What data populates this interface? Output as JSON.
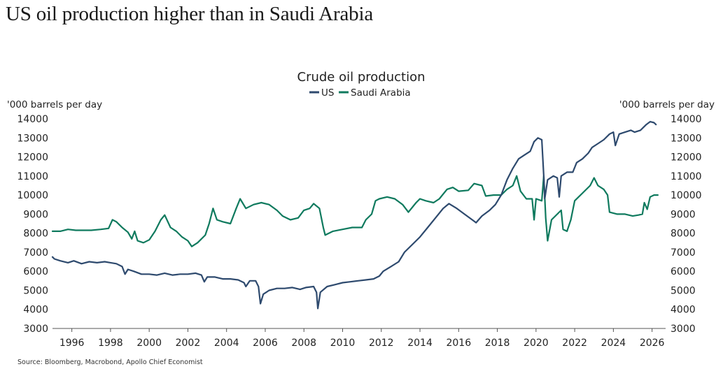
{
  "page": {
    "title": "US oil production higher than in Saudi Arabia",
    "source": "Source: Bloomberg, Macrobond, Apollo Chief Economist"
  },
  "chart_data": {
    "type": "line",
    "title": "Crude oil production",
    "ylabel_left": "'000 barrels per day",
    "ylabel_right": "'000 barrels per day",
    "xlabel": "",
    "ylim": [
      3000,
      14000
    ],
    "xlim": [
      1995.0,
      2026.7
    ],
    "yticks": [
      3000,
      4000,
      5000,
      6000,
      7000,
      8000,
      9000,
      10000,
      11000,
      12000,
      13000,
      14000
    ],
    "xticks": [
      1996,
      1998,
      2000,
      2002,
      2004,
      2006,
      2008,
      2010,
      2012,
      2014,
      2016,
      2018,
      2020,
      2022,
      2024,
      2026
    ],
    "legend_position": "top-center",
    "grid": false,
    "colors": {
      "US": "#2e4a6e",
      "Saudi Arabia": "#0f7a5e"
    },
    "series": [
      {
        "name": "US",
        "points": [
          [
            1995.0,
            6750
          ],
          [
            1995.1,
            6650
          ],
          [
            1995.4,
            6550
          ],
          [
            1995.8,
            6450
          ],
          [
            1996.1,
            6550
          ],
          [
            1996.5,
            6400
          ],
          [
            1996.9,
            6500
          ],
          [
            1997.3,
            6450
          ],
          [
            1997.7,
            6500
          ],
          [
            1998.0,
            6450
          ],
          [
            1998.3,
            6400
          ],
          [
            1998.6,
            6250
          ],
          [
            1998.75,
            5850
          ],
          [
            1998.9,
            6100
          ],
          [
            1999.2,
            6000
          ],
          [
            1999.6,
            5850
          ],
          [
            2000.0,
            5850
          ],
          [
            2000.4,
            5800
          ],
          [
            2000.8,
            5900
          ],
          [
            2001.2,
            5800
          ],
          [
            2001.6,
            5850
          ],
          [
            2002.0,
            5850
          ],
          [
            2002.4,
            5900
          ],
          [
            2002.7,
            5800
          ],
          [
            2002.85,
            5450
          ],
          [
            2003.0,
            5700
          ],
          [
            2003.4,
            5700
          ],
          [
            2003.8,
            5600
          ],
          [
            2004.2,
            5600
          ],
          [
            2004.6,
            5550
          ],
          [
            2004.9,
            5400
          ],
          [
            2005.0,
            5200
          ],
          [
            2005.2,
            5500
          ],
          [
            2005.5,
            5500
          ],
          [
            2005.65,
            5200
          ],
          [
            2005.75,
            4300
          ],
          [
            2005.9,
            4800
          ],
          [
            2006.2,
            5000
          ],
          [
            2006.6,
            5100
          ],
          [
            2007.0,
            5100
          ],
          [
            2007.4,
            5150
          ],
          [
            2007.8,
            5050
          ],
          [
            2008.1,
            5150
          ],
          [
            2008.5,
            5200
          ],
          [
            2008.65,
            4900
          ],
          [
            2008.72,
            4050
          ],
          [
            2008.85,
            4900
          ],
          [
            2009.2,
            5200
          ],
          [
            2009.6,
            5300
          ],
          [
            2010.0,
            5400
          ],
          [
            2010.4,
            5450
          ],
          [
            2010.8,
            5500
          ],
          [
            2011.2,
            5550
          ],
          [
            2011.6,
            5600
          ],
          [
            2011.9,
            5750
          ],
          [
            2012.1,
            6000
          ],
          [
            2012.5,
            6250
          ],
          [
            2012.9,
            6500
          ],
          [
            2013.2,
            7000
          ],
          [
            2013.6,
            7400
          ],
          [
            2014.0,
            7800
          ],
          [
            2014.4,
            8300
          ],
          [
            2014.8,
            8800
          ],
          [
            2015.2,
            9300
          ],
          [
            2015.5,
            9550
          ],
          [
            2015.9,
            9300
          ],
          [
            2016.3,
            9000
          ],
          [
            2016.7,
            8700
          ],
          [
            2016.9,
            8550
          ],
          [
            2017.2,
            8900
          ],
          [
            2017.6,
            9200
          ],
          [
            2017.9,
            9500
          ],
          [
            2018.2,
            10000
          ],
          [
            2018.5,
            10800
          ],
          [
            2018.8,
            11400
          ],
          [
            2019.1,
            11900
          ],
          [
            2019.4,
            12100
          ],
          [
            2019.7,
            12300
          ],
          [
            2019.9,
            12800
          ],
          [
            2020.1,
            13000
          ],
          [
            2020.3,
            12900
          ],
          [
            2020.4,
            11000
          ],
          [
            2020.45,
            9800
          ],
          [
            2020.6,
            10800
          ],
          [
            2020.9,
            11000
          ],
          [
            2021.1,
            10900
          ],
          [
            2021.2,
            9900
          ],
          [
            2021.3,
            11000
          ],
          [
            2021.6,
            11200
          ],
          [
            2021.9,
            11200
          ],
          [
            2022.1,
            11700
          ],
          [
            2022.4,
            11900
          ],
          [
            2022.7,
            12200
          ],
          [
            2022.9,
            12500
          ],
          [
            2023.2,
            12700
          ],
          [
            2023.5,
            12900
          ],
          [
            2023.8,
            13200
          ],
          [
            2024.0,
            13300
          ],
          [
            2024.1,
            12600
          ],
          [
            2024.3,
            13200
          ],
          [
            2024.6,
            13300
          ],
          [
            2024.9,
            13400
          ],
          [
            2025.1,
            13300
          ],
          [
            2025.4,
            13400
          ],
          [
            2025.7,
            13700
          ],
          [
            2025.9,
            13850
          ],
          [
            2026.1,
            13800
          ],
          [
            2026.2,
            13700
          ]
        ]
      },
      {
        "name": "Saudi Arabia",
        "points": [
          [
            1995.0,
            8100
          ],
          [
            1995.4,
            8100
          ],
          [
            1995.8,
            8200
          ],
          [
            1996.2,
            8150
          ],
          [
            1996.6,
            8150
          ],
          [
            1997.0,
            8150
          ],
          [
            1997.5,
            8200
          ],
          [
            1997.9,
            8250
          ],
          [
            1998.1,
            8700
          ],
          [
            1998.3,
            8600
          ],
          [
            1998.6,
            8300
          ],
          [
            1998.9,
            8050
          ],
          [
            1999.1,
            7700
          ],
          [
            1999.25,
            8100
          ],
          [
            1999.4,
            7600
          ],
          [
            1999.7,
            7500
          ],
          [
            2000.0,
            7650
          ],
          [
            2000.3,
            8100
          ],
          [
            2000.6,
            8700
          ],
          [
            2000.8,
            8950
          ],
          [
            2001.1,
            8300
          ],
          [
            2001.4,
            8100
          ],
          [
            2001.7,
            7800
          ],
          [
            2002.0,
            7600
          ],
          [
            2002.2,
            7300
          ],
          [
            2002.5,
            7500
          ],
          [
            2002.9,
            7900
          ],
          [
            2003.1,
            8500
          ],
          [
            2003.3,
            9300
          ],
          [
            2003.5,
            8700
          ],
          [
            2003.8,
            8600
          ],
          [
            2004.2,
            8500
          ],
          [
            2004.5,
            9300
          ],
          [
            2004.7,
            9800
          ],
          [
            2005.0,
            9300
          ],
          [
            2005.4,
            9500
          ],
          [
            2005.8,
            9600
          ],
          [
            2006.2,
            9500
          ],
          [
            2006.6,
            9200
          ],
          [
            2006.9,
            8900
          ],
          [
            2007.3,
            8700
          ],
          [
            2007.7,
            8800
          ],
          [
            2008.0,
            9200
          ],
          [
            2008.3,
            9300
          ],
          [
            2008.5,
            9550
          ],
          [
            2008.8,
            9300
          ],
          [
            2009.0,
            8300
          ],
          [
            2009.1,
            7900
          ],
          [
            2009.5,
            8100
          ],
          [
            2010.0,
            8200
          ],
          [
            2010.5,
            8300
          ],
          [
            2011.0,
            8300
          ],
          [
            2011.2,
            8700
          ],
          [
            2011.5,
            9000
          ],
          [
            2011.7,
            9700
          ],
          [
            2011.9,
            9800
          ],
          [
            2012.3,
            9900
          ],
          [
            2012.7,
            9800
          ],
          [
            2013.1,
            9500
          ],
          [
            2013.4,
            9100
          ],
          [
            2013.8,
            9600
          ],
          [
            2014.0,
            9800
          ],
          [
            2014.3,
            9700
          ],
          [
            2014.7,
            9600
          ],
          [
            2015.0,
            9800
          ],
          [
            2015.4,
            10300
          ],
          [
            2015.7,
            10400
          ],
          [
            2016.0,
            10200
          ],
          [
            2016.5,
            10250
          ],
          [
            2016.8,
            10600
          ],
          [
            2017.2,
            10500
          ],
          [
            2017.4,
            9950
          ],
          [
            2017.8,
            10000
          ],
          [
            2018.2,
            10000
          ],
          [
            2018.5,
            10300
          ],
          [
            2018.8,
            10500
          ],
          [
            2019.0,
            11000
          ],
          [
            2019.2,
            10200
          ],
          [
            2019.5,
            9800
          ],
          [
            2019.8,
            9800
          ],
          [
            2019.9,
            8700
          ],
          [
            2020.0,
            9800
          ],
          [
            2020.3,
            9700
          ],
          [
            2020.4,
            11000
          ],
          [
            2020.5,
            8800
          ],
          [
            2020.6,
            7600
          ],
          [
            2020.8,
            8700
          ],
          [
            2021.1,
            9000
          ],
          [
            2021.3,
            9200
          ],
          [
            2021.4,
            8200
          ],
          [
            2021.6,
            8100
          ],
          [
            2021.8,
            8700
          ],
          [
            2022.0,
            9700
          ],
          [
            2022.4,
            10100
          ],
          [
            2022.8,
            10500
          ],
          [
            2023.0,
            10900
          ],
          [
            2023.2,
            10500
          ],
          [
            2023.5,
            10300
          ],
          [
            2023.7,
            10000
          ],
          [
            2023.8,
            9100
          ],
          [
            2024.2,
            9000
          ],
          [
            2024.6,
            9000
          ],
          [
            2025.0,
            8900
          ],
          [
            2025.3,
            8950
          ],
          [
            2025.5,
            9000
          ],
          [
            2025.6,
            9600
          ],
          [
            2025.75,
            9250
          ],
          [
            2025.9,
            9900
          ],
          [
            2026.1,
            10000
          ],
          [
            2026.3,
            10000
          ]
        ]
      }
    ]
  }
}
